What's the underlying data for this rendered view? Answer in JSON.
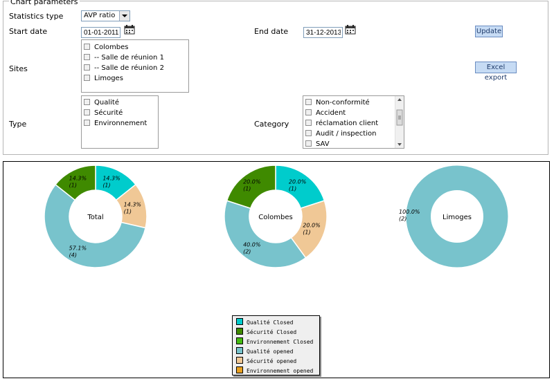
{
  "params": {
    "title": "Chart parameters",
    "statistics_type_label": "Statistics type",
    "statistics_type_value": "AVP ratio",
    "start_date_label": "Start date",
    "start_date_value": "01-01-2011",
    "end_date_label": "End date",
    "end_date_value": "31-12-2013",
    "update_label": "Update",
    "excel_export_label": "Excel export",
    "sites_label": "Sites",
    "sites_options": [
      "Colombes",
      "-- Salle de réunion 1",
      "-- Salle de réunion 2",
      "Limoges"
    ],
    "type_label": "Type",
    "type_options": [
      "Qualité",
      "Sécurité",
      "Environnement"
    ],
    "category_label": "Category",
    "category_options": [
      "Non-conformité",
      "Accident",
      "réclamation client",
      "Audit / inspection",
      "SAV"
    ]
  },
  "colors": {
    "qualite_closed": "#00cccc",
    "securite_closed": "#3f8a00",
    "environnement_closed": "#44bb11",
    "qualite_opened": "#78c3cc",
    "securite_opened": "#f0c896",
    "environnement_opened": "#e8a020"
  },
  "chart_data": [
    {
      "type": "pie",
      "title": "Total",
      "slices": [
        {
          "series": "Qualité Closed",
          "percent": 14.3,
          "count": 1,
          "label": "14.3%",
          "count_label": "(1)"
        },
        {
          "series": "Sécurité opened",
          "percent": 14.3,
          "count": 1,
          "label": "14.3%",
          "count_label": "(1)"
        },
        {
          "series": "Qualité opened",
          "percent": 57.1,
          "count": 4,
          "label": "57.1%",
          "count_label": "(4)"
        },
        {
          "series": "Sécurité Closed",
          "percent": 14.3,
          "count": 1,
          "label": "14.3%",
          "count_label": "(1)"
        }
      ]
    },
    {
      "type": "pie",
      "title": "Colombes",
      "slices": [
        {
          "series": "Qualité Closed",
          "percent": 20.0,
          "count": 1,
          "label": "20.0%",
          "count_label": "(1)"
        },
        {
          "series": "Sécurité opened",
          "percent": 20.0,
          "count": 1,
          "label": "20.0%",
          "count_label": "(1)"
        },
        {
          "series": "Qualité opened",
          "percent": 40.0,
          "count": 2,
          "label": "40.0%",
          "count_label": "(2)"
        },
        {
          "series": "Sécurité Closed",
          "percent": 20.0,
          "count": 1,
          "label": "20.0%",
          "count_label": "(1)"
        }
      ]
    },
    {
      "type": "pie",
      "title": "Limoges",
      "slices": [
        {
          "series": "Qualité opened",
          "percent": 100.0,
          "count": 2,
          "label": "100.0%",
          "count_label": "(2)"
        }
      ]
    }
  ],
  "legend": [
    {
      "label": "Qualité Closed",
      "color_key": "qualite_closed"
    },
    {
      "label": "Sécurité Closed",
      "color_key": "securite_closed"
    },
    {
      "label": "Environnement Closed",
      "color_key": "environnement_closed"
    },
    {
      "label": "Qualité opened",
      "color_key": "qualite_opened"
    },
    {
      "label": "Sécurité opened",
      "color_key": "securite_opened"
    },
    {
      "label": "Environnement opened",
      "color_key": "environnement_opened"
    }
  ]
}
